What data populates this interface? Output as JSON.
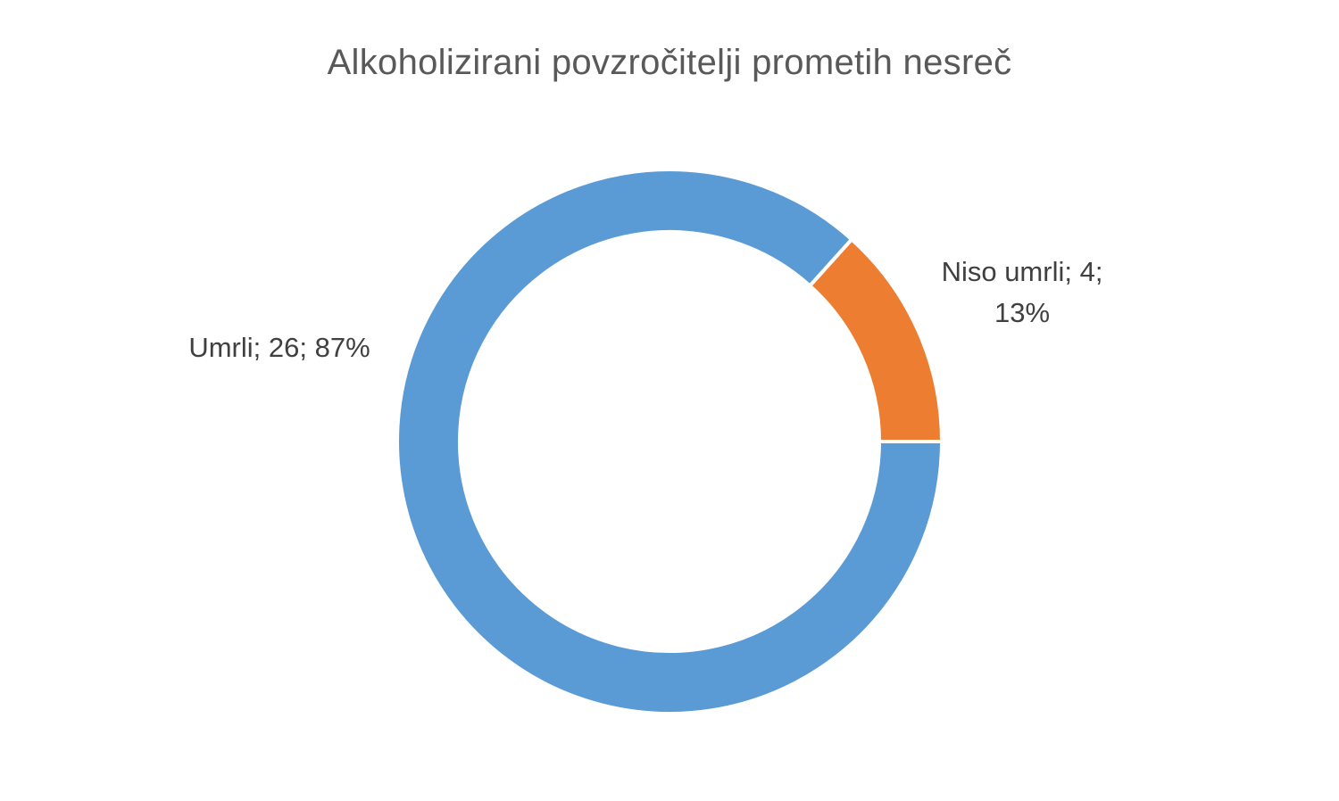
{
  "chart_data": {
    "type": "doughnut",
    "title": "Alkoholizirani povzročitelji prometih nesreč",
    "slices": [
      {
        "name": "Niso umrli",
        "value": 4,
        "percent": 13,
        "color": "#ED7D31",
        "label_lines": [
          "Niso umrli; 4;",
          "13%"
        ]
      },
      {
        "name": "Umrli",
        "value": 26,
        "percent": 87,
        "color": "#5B9BD5",
        "label_lines": [
          "Umrli; 26; 87%"
        ]
      }
    ],
    "start_angle_deg": 90,
    "direction": "counterclockwise",
    "legend": "none",
    "data_labels": "outside"
  }
}
